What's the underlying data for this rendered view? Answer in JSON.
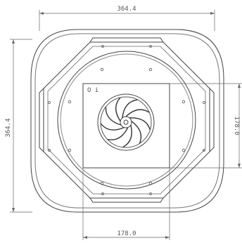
{
  "drawing": {
    "dimension_top": "364.4",
    "dimension_left": "364.4",
    "dimension_right": "178.0",
    "dimension_bottom": "178.0",
    "inlet_label": "O i",
    "line_color": "#444444",
    "dim_color": "#666666"
  }
}
